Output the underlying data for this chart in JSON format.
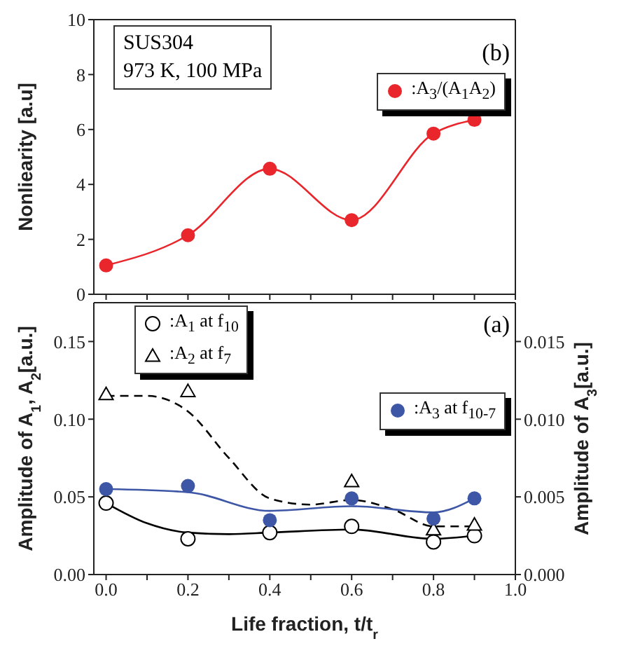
{
  "chart_data": [
    {
      "type": "line",
      "ylabel": "Nonliearity [a.u]",
      "xlim": [
        -0.03,
        1.0
      ],
      "xticks": [
        {
          "value": 0,
          "label": null
        },
        {
          "value": 0.1,
          "label": null
        },
        {
          "value": 0.2,
          "label": null
        },
        {
          "value": 0.3,
          "label": null
        },
        {
          "value": 0.4,
          "label": null
        },
        {
          "value": 0.5,
          "label": null
        },
        {
          "value": 0.6,
          "label": null
        },
        {
          "value": 0.7,
          "label": null
        },
        {
          "value": 0.8,
          "label": null
        },
        {
          "value": 0.9,
          "label": null
        },
        {
          "value": 1.0,
          "label": null
        }
      ],
      "ylim": [
        0,
        10
      ],
      "yticks": [
        0,
        2,
        4,
        6,
        8,
        10
      ],
      "tick_labels": "y",
      "legend": "top right",
      "marker": "circle",
      "line_style": "solid",
      "annotations": [
        "SUS304",
        "973 K, 100 MPa",
        "(b)"
      ],
      "series": [
        {
          "name": ":A$_{3}$/(A$_{1}$A$_{2}$)",
          "color": "#e8262b",
          "x": [
            0,
            0.2,
            0.4,
            0.6,
            0.8,
            0.9
          ],
          "values": [
            1.05,
            2.15,
            4.57,
            2.7,
            5.85,
            6.35
          ]
        }
      ]
    },
    {
      "type": "scatter",
      "xlabel": "Life fraction, t/t$_{r}$",
      "ylabel": "Amplitude of A$_{1}$, A$_{2}$[a.u.]",
      "y2label": "Amplitude of A$_{3}$[a.u.]",
      "xlim": [
        -0.03,
        1.0
      ],
      "xticks": [
        {
          "value": 0,
          "label": "0.0"
        },
        {
          "value": 0.1,
          "label": null
        },
        {
          "value": 0.2,
          "label": "0.2"
        },
        {
          "value": 0.3,
          "label": null
        },
        {
          "value": 0.4,
          "label": "0.4"
        },
        {
          "value": 0.5,
          "label": null
        },
        {
          "value": 0.6,
          "label": "0.6"
        },
        {
          "value": 0.7,
          "label": null
        },
        {
          "value": 0.8,
          "label": "0.8"
        },
        {
          "value": 0.9,
          "label": null
        },
        {
          "value": 1.0,
          "label": "1.0"
        }
      ],
      "ylim": [
        0,
        0.175
      ],
      "yticks": [
        {
          "value": 0,
          "label": "0.00"
        },
        {
          "value": 0.05,
          "label": "0.05"
        },
        {
          "value": 0.1,
          "label": "0.10"
        },
        {
          "value": 0.15,
          "label": "0.15"
        }
      ],
      "y2lim": [
        0,
        0.0175
      ],
      "y2ticks": [
        {
          "value": 0,
          "label": "0.000"
        },
        {
          "value": 0.005,
          "label": "0.005"
        },
        {
          "value": 0.01,
          "label": "0.010"
        },
        {
          "value": 0.015,
          "label": "0.015"
        }
      ],
      "legend": "top left",
      "annotations": [
        "(a)"
      ],
      "series": [
        {
          "name": ":A$_{1}$ at f$_{10}$",
          "color": "#000000",
          "marker": "circle",
          "x": [
            0,
            0.2,
            0.4,
            0.6,
            0.8,
            0.9
          ],
          "values": [
            0.046,
            0.023,
            0.027,
            0.031,
            0.021,
            0.025
          ]
        },
        {
          "name": ":A$_{2}$ at f$_{7}$",
          "color": "#000000",
          "marker": "triangle",
          "x": [
            0,
            0.2,
            0.6,
            0.8,
            0.9
          ],
          "values": [
            0.116,
            0.118,
            0.06,
            0.029,
            0.032
          ]
        },
        {
          "name": ":A$_{3}$ at f$_{10-7}$",
          "color": "#3d56a6",
          "marker": "circle",
          "axis": "y2",
          "x": [
            0,
            0.2,
            0.4,
            0.6,
            0.8,
            0.9
          ],
          "values": [
            0.0055,
            0.0057,
            0.0035,
            0.0049,
            0.0036,
            0.0049
          ]
        },
        {
          "type": "line",
          "color": "#000000",
          "marker": "none",
          "line_style": "solid",
          "x": [
            0,
            0.1,
            0.2,
            0.3,
            0.4,
            0.6,
            0.8,
            0.9
          ],
          "values": [
            0.046,
            0.033,
            0.027,
            0.026,
            0.027,
            0.029,
            0.023,
            0.025
          ]
        },
        {
          "type": "line",
          "color": "#000000",
          "marker": "none",
          "line_style": "dashed",
          "x": [
            0,
            0.1,
            0.2,
            0.3,
            0.4,
            0.5,
            0.6,
            0.7,
            0.8,
            0.9
          ],
          "values": [
            0.115,
            0.115,
            0.105,
            0.075,
            0.049,
            0.045,
            0.048,
            0.042,
            0.031,
            0.031
          ]
        },
        {
          "type": "line",
          "color": "#3d56a6",
          "marker": "none",
          "line_style": "solid",
          "axis": "y2",
          "x": [
            0,
            0.2,
            0.4,
            0.6,
            0.8,
            0.9
          ],
          "values": [
            0.0055,
            0.0053,
            0.0041,
            0.0044,
            0.004,
            0.0049
          ]
        }
      ]
    }
  ]
}
